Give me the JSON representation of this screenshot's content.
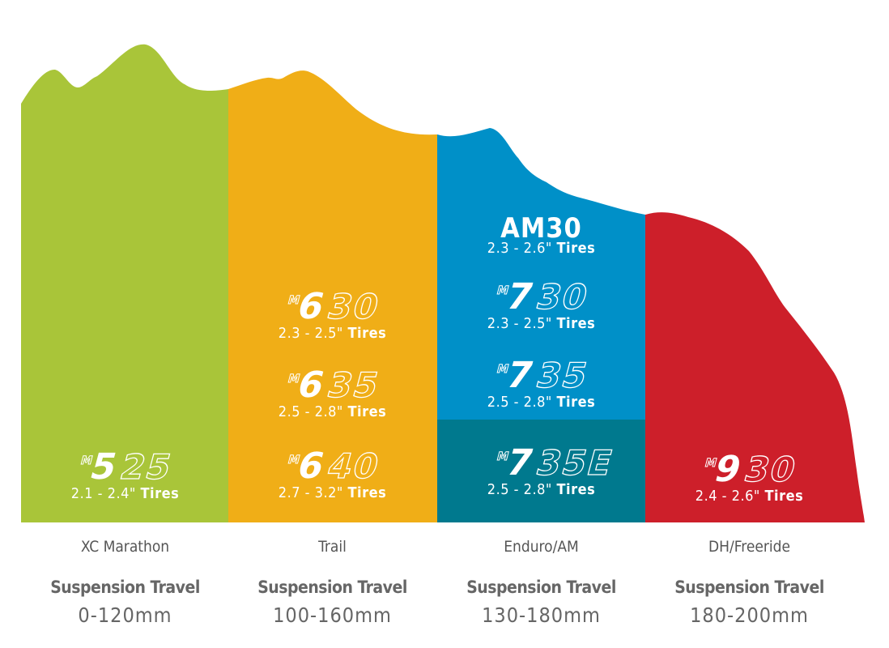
{
  "colors": {
    "xc": "#a9c539",
    "trail": "#f0ae17",
    "enduro": "#0090c8",
    "enduro_e": "#00798e",
    "dh": "#cd1f2a"
  },
  "columns": [
    {
      "category": "XC Marathon",
      "travel_label": "Suspension Travel",
      "travel": "0-120mm",
      "products": [
        {
          "prefix": "M",
          "digit": "5",
          "rest": "25",
          "tires_range": "2.1 - 2.4\"",
          "tires_word": "Tires"
        }
      ]
    },
    {
      "category": "Trail",
      "travel_label": "Suspension Travel",
      "travel": "100-160mm",
      "products": [
        {
          "prefix": "M",
          "digit": "6",
          "rest": "30",
          "tires_range": "2.3 - 2.5\"",
          "tires_word": "Tires"
        },
        {
          "prefix": "M",
          "digit": "6",
          "rest": "35",
          "tires_range": "2.5 - 2.8\"",
          "tires_word": "Tires"
        },
        {
          "prefix": "M",
          "digit": "6",
          "rest": "40",
          "tires_range": "2.7 - 3.2\"",
          "tires_word": "Tires"
        }
      ]
    },
    {
      "category": "Enduro/AM",
      "travel_label": "Suspension Travel",
      "travel": "130-180mm",
      "am30": {
        "name": "AM30",
        "tires_range": "2.3 - 2.6\"",
        "tires_word": "Tires"
      },
      "products": [
        {
          "prefix": "M",
          "digit": "7",
          "rest": "30",
          "tires_range": "2.3 - 2.5\"",
          "tires_word": "Tires"
        },
        {
          "prefix": "M",
          "digit": "7",
          "rest": "35",
          "tires_range": "2.5 - 2.8\"",
          "tires_word": "Tires"
        },
        {
          "prefix": "M",
          "digit": "7",
          "rest": "35E",
          "tires_range": "2.5 - 2.8\"",
          "tires_word": "Tires"
        }
      ]
    },
    {
      "category": "DH/Freeride",
      "travel_label": "Suspension Travel",
      "travel": "180-200mm",
      "products": [
        {
          "prefix": "M",
          "digit": "9",
          "rest": "30",
          "tires_range": "2.4 - 2.6\"",
          "tires_word": "Tires"
        }
      ]
    }
  ]
}
